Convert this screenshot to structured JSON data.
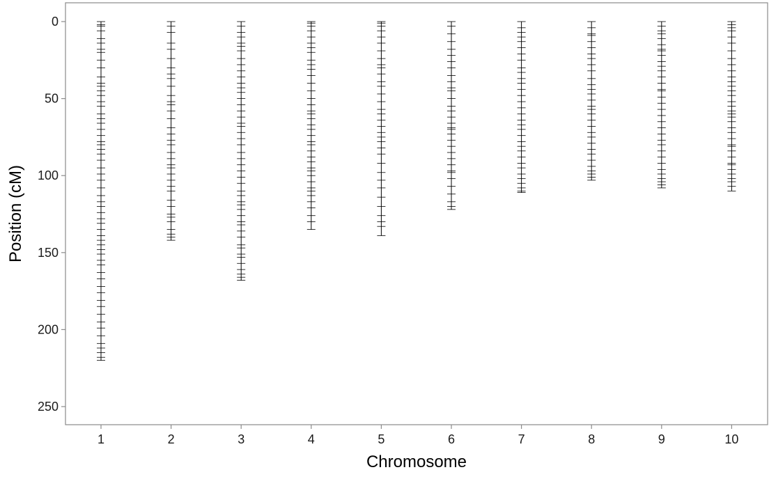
{
  "chart_data": {
    "type": "linkage-map",
    "title": "",
    "xlabel": "Chromosome",
    "ylabel": "Position (cM)",
    "y_reversed": true,
    "ylim": [
      0,
      262
    ],
    "y_ticks": [
      0,
      50,
      100,
      150,
      200,
      250
    ],
    "grid": false,
    "legend": "none",
    "colors": {
      "axis": "#8a8a8a",
      "line": "#000000",
      "marker": "#000000"
    },
    "chromosomes": [
      {
        "name": "1",
        "length": 220,
        "markers": [
          0,
          2,
          3,
          6,
          11,
          14,
          18,
          20,
          25,
          30,
          36,
          40,
          42,
          45,
          48,
          52,
          55,
          60,
          63,
          66,
          70,
          74,
          78,
          80,
          83,
          86,
          90,
          95,
          99,
          103,
          108,
          113,
          117,
          120,
          124,
          128,
          131,
          135,
          139,
          142,
          145,
          148,
          151,
          155,
          158,
          163,
          167,
          172,
          176,
          181,
          185,
          190,
          195,
          199,
          204,
          209,
          212,
          215,
          218,
          220
        ]
      },
      {
        "name": "2",
        "length": 142,
        "markers": [
          0,
          3,
          7,
          14,
          18,
          24,
          30,
          34,
          37,
          42,
          48,
          52,
          54,
          58,
          63,
          69,
          73,
          77,
          80,
          85,
          89,
          93,
          95,
          99,
          103,
          107,
          110,
          116,
          120,
          125,
          127,
          130,
          135,
          138,
          140,
          142
        ]
      },
      {
        "name": "3",
        "length": 168,
        "markers": [
          0,
          3,
          7,
          10,
          14,
          16,
          19,
          24,
          28,
          32,
          36,
          40,
          43,
          46,
          50,
          54,
          58,
          62,
          66,
          68,
          72,
          76,
          80,
          85,
          89,
          93,
          97,
          101,
          105,
          110,
          113,
          117,
          119,
          122,
          126,
          130,
          132,
          136,
          140,
          145,
          147,
          151,
          153,
          157,
          161,
          164,
          166,
          168
        ]
      },
      {
        "name": "4",
        "length": 135,
        "markers": [
          0,
          1,
          3,
          6,
          10,
          14,
          17,
          20,
          25,
          28,
          31,
          35,
          40,
          45,
          50,
          54,
          58,
          60,
          63,
          67,
          70,
          74,
          78,
          80,
          84,
          88,
          91,
          95,
          97,
          100,
          104,
          108,
          110,
          113,
          117,
          121,
          126,
          130,
          135
        ]
      },
      {
        "name": "5",
        "length": 139,
        "markers": [
          0,
          1,
          3,
          6,
          10,
          14,
          19,
          24,
          28,
          30,
          34,
          39,
          42,
          47,
          52,
          57,
          60,
          64,
          68,
          72,
          75,
          78,
          82,
          86,
          92,
          98,
          103,
          108,
          114,
          120,
          126,
          130,
          133,
          139
        ]
      },
      {
        "name": "6",
        "length": 122,
        "markers": [
          0,
          3,
          8,
          13,
          18,
          22,
          26,
          30,
          35,
          39,
          43,
          45,
          50,
          55,
          58,
          62,
          66,
          69,
          70,
          73,
          77,
          81,
          85,
          89,
          93,
          97,
          98,
          102,
          107,
          112,
          117,
          120,
          122
        ]
      },
      {
        "name": "7",
        "length": 111,
        "markers": [
          0,
          4,
          7,
          10,
          13,
          17,
          21,
          25,
          30,
          33,
          37,
          40,
          44,
          48,
          52,
          56,
          60,
          64,
          67,
          70,
          74,
          78,
          81,
          84,
          88,
          92,
          95,
          99,
          102,
          105,
          108,
          110,
          111
        ]
      },
      {
        "name": "8",
        "length": 103,
        "markers": [
          0,
          4,
          8,
          9,
          13,
          17,
          21,
          24,
          28,
          32,
          37,
          41,
          44,
          47,
          51,
          55,
          57,
          60,
          64,
          68,
          72,
          75,
          79,
          83,
          86,
          90,
          94,
          97,
          99,
          101,
          103
        ]
      },
      {
        "name": "9",
        "length": 108,
        "markers": [
          0,
          3,
          6,
          8,
          11,
          15,
          18,
          19,
          22,
          26,
          29,
          32,
          36,
          40,
          44,
          45,
          49,
          53,
          57,
          61,
          65,
          69,
          73,
          77,
          80,
          84,
          88,
          92,
          96,
          99,
          102,
          104,
          106,
          108
        ]
      },
      {
        "name": "10",
        "length": 110,
        "markers": [
          0,
          2,
          4,
          6,
          10,
          14,
          19,
          24,
          28,
          32,
          36,
          39,
          42,
          45,
          48,
          52,
          55,
          58,
          60,
          62,
          65,
          69,
          72,
          76,
          80,
          81,
          84,
          88,
          92,
          93,
          96,
          99,
          102,
          104,
          107,
          110
        ]
      }
    ]
  }
}
